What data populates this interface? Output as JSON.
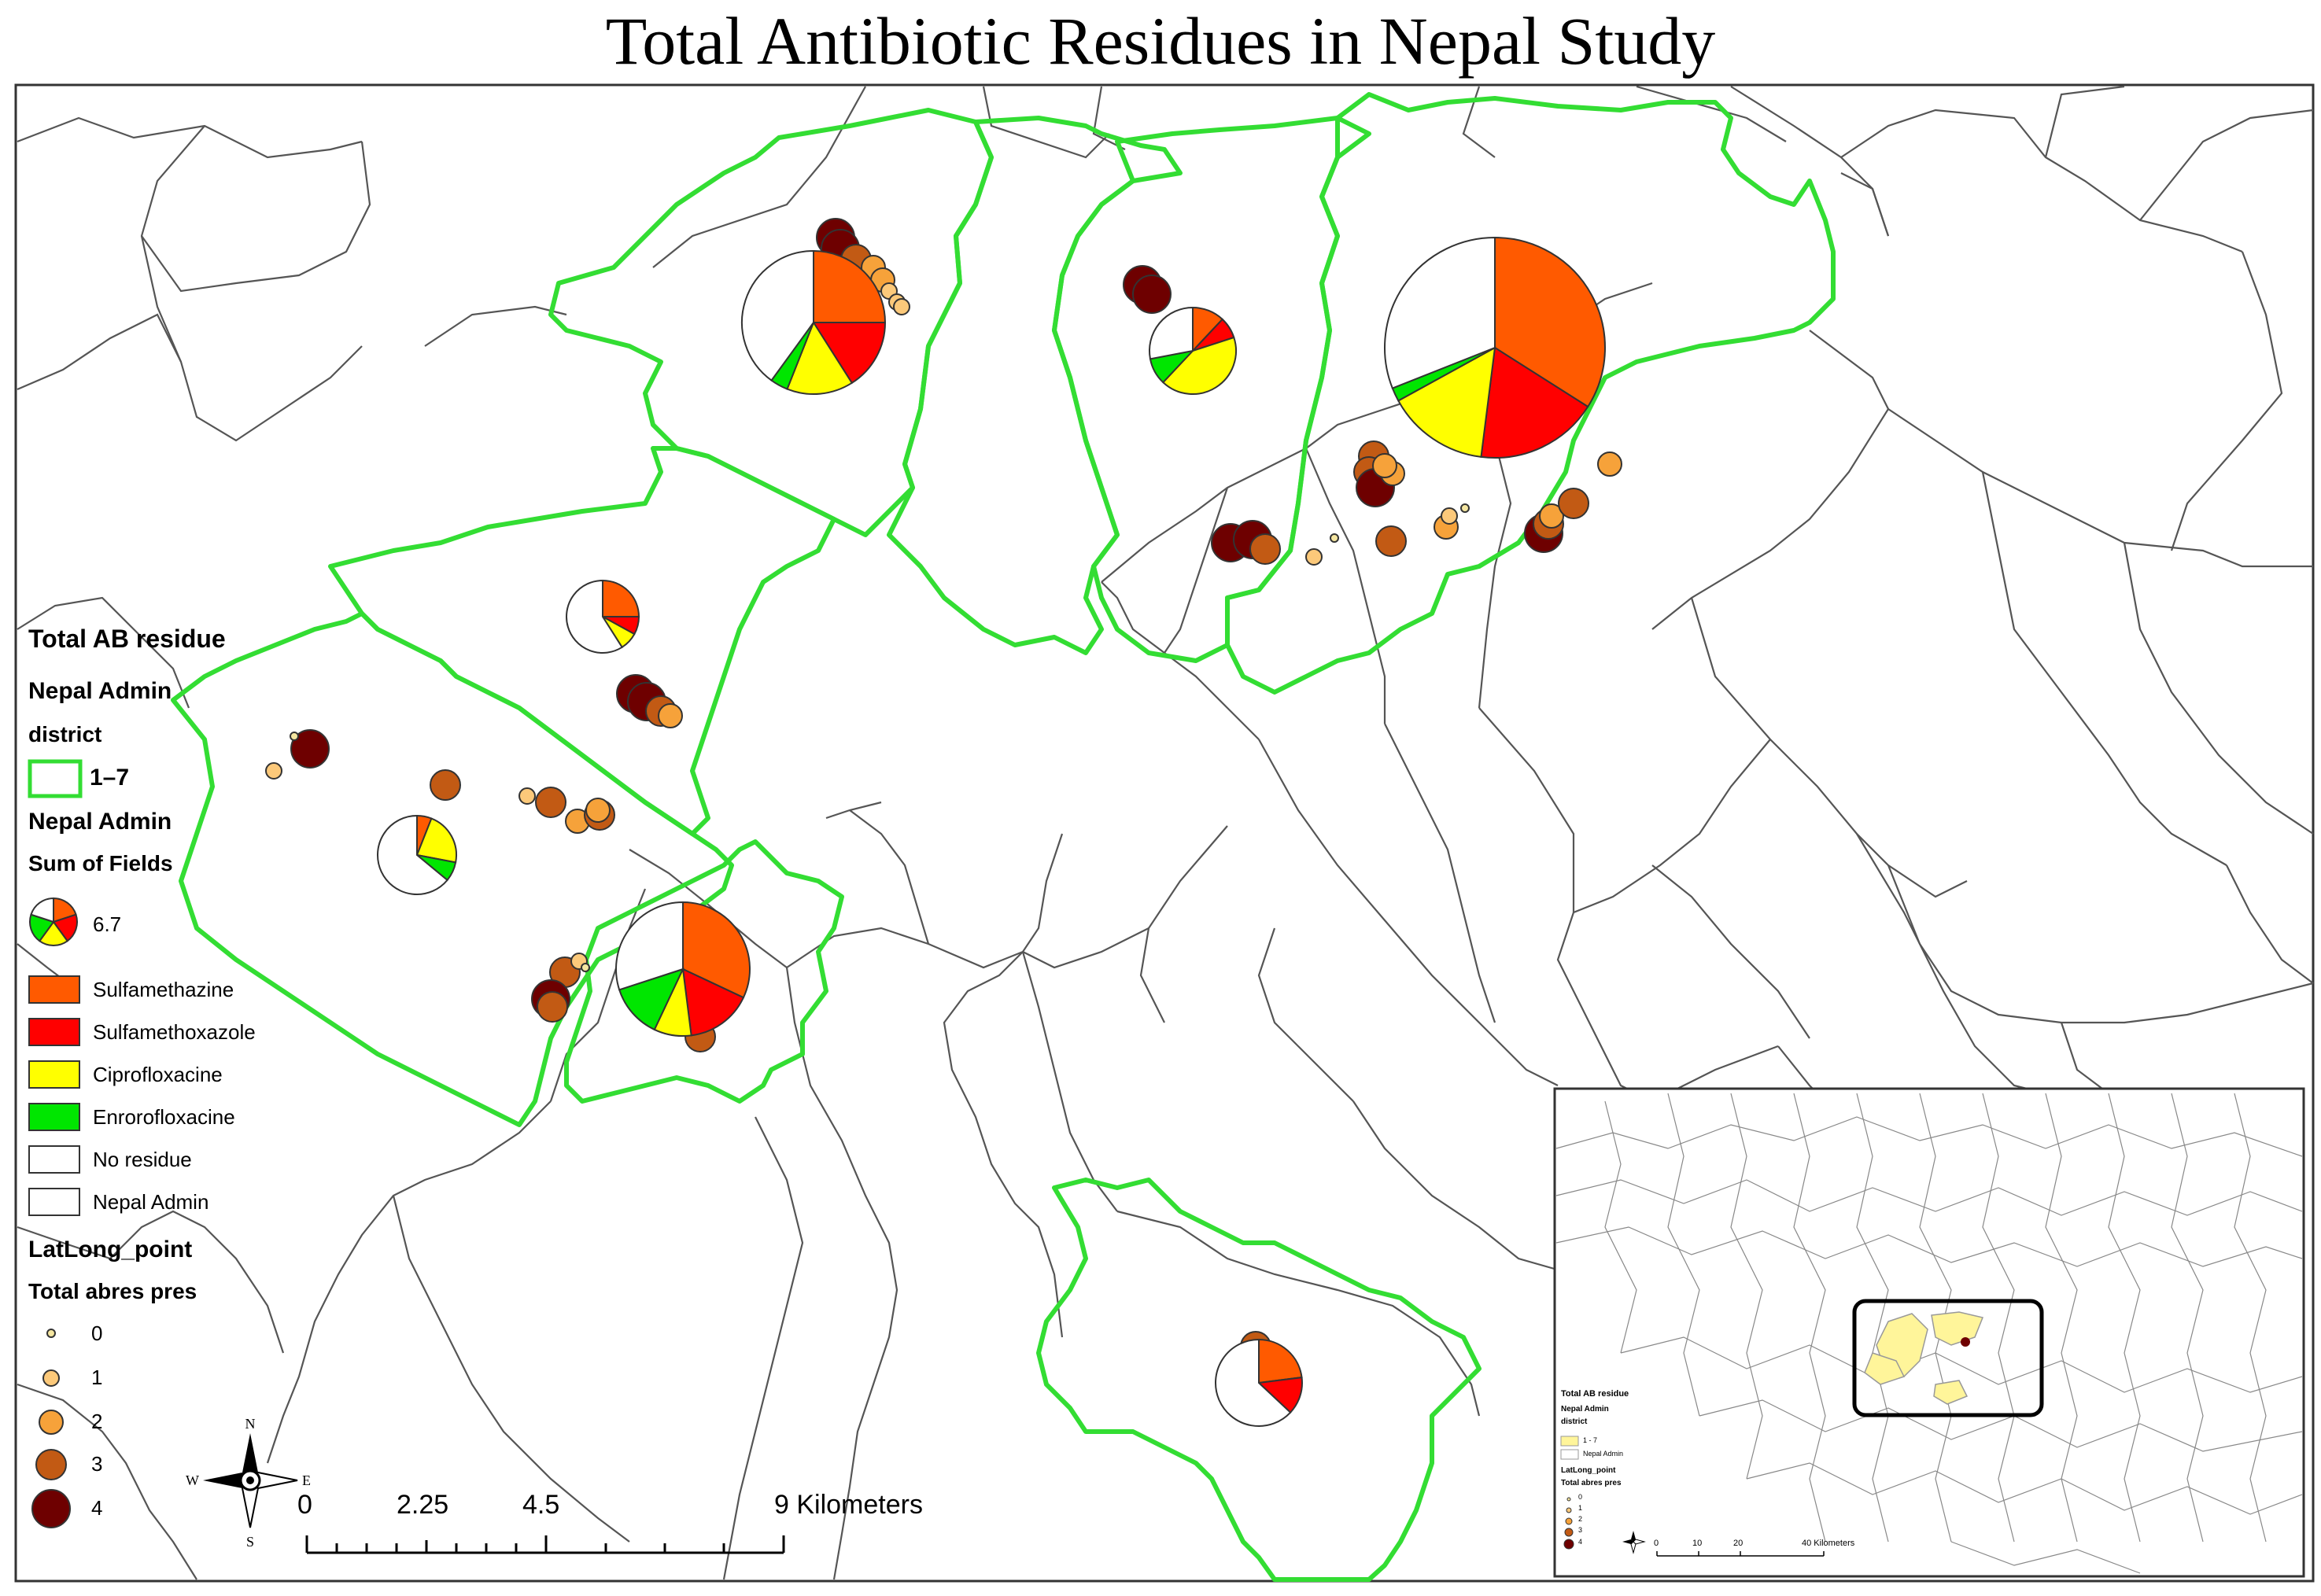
{
  "title": "Total Antibiotic Residues in Nepal Study",
  "legend": {
    "header": "Total AB residue",
    "group1": "Nepal Admin",
    "group1_sub": "district",
    "district_label": "1–7",
    "group2": "Nepal Admin",
    "group2_sub": "Sum of Fields",
    "pie_value": "6.7",
    "categories": [
      {
        "label": "Sulfamethazine",
        "color": "#ff5a00"
      },
      {
        "label": "Sulfamethoxazole",
        "color": "#ff0000"
      },
      {
        "label": "Ciprofloxacine",
        "color": "#ffff00"
      },
      {
        "label": "Enrorofloxacine",
        "color": "#00e600"
      },
      {
        "label": "No residue",
        "color": "#ffffff"
      },
      {
        "label": "Nepal Admin",
        "color": "#ffffff"
      }
    ],
    "points_header": "LatLong_point",
    "points_sub": "Total abres pres",
    "point_classes": [
      {
        "label": "0",
        "color": "#f5e6a0"
      },
      {
        "label": "1",
        "color": "#fcc97a"
      },
      {
        "label": "2",
        "color": "#f6a23a"
      },
      {
        "label": "3",
        "color": "#c25a14"
      },
      {
        "label": "4",
        "color": "#6e0000"
      }
    ]
  },
  "compass": {
    "n": "N",
    "s": "S",
    "e": "E",
    "w": "W"
  },
  "scalebar": {
    "ticks": [
      "0",
      "2.25",
      "4.5",
      "9 Kilometers"
    ]
  },
  "inset": {
    "legend_lines": [
      "Total AB residue",
      "Nepal Admin",
      "district",
      "1 - 7",
      "Nepal Admin",
      "LatLong_point",
      "Total abres pres",
      "0",
      "1",
      "2",
      "3",
      "4"
    ],
    "scale_ticks": [
      "0",
      "10",
      "20",
      "40 Kilometers"
    ],
    "compass": {
      "n": "N",
      "s": "S",
      "e": "E",
      "w": "W"
    }
  },
  "colors": {
    "district_border": "#33dd33",
    "admin_border": "#555555"
  }
}
